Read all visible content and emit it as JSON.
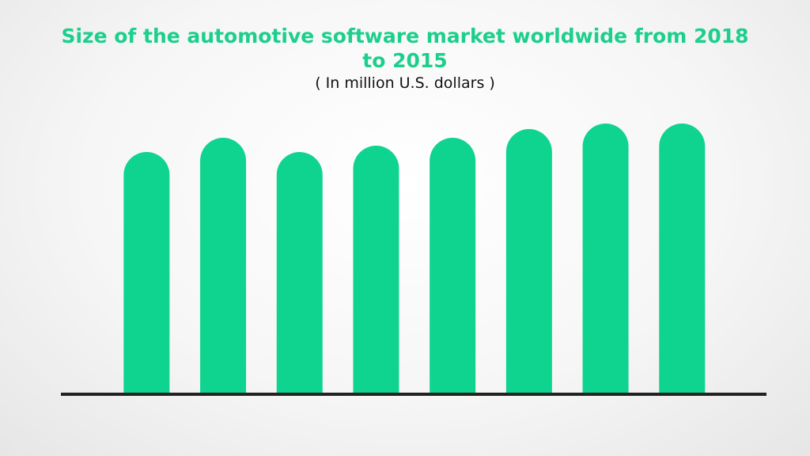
{
  "chart_data": {
    "type": "bar",
    "title": "Size of the automotive software market worldwide from 2018 to 2015",
    "subtitle": "( In million U.S. dollars )",
    "values": [
      305,
      323,
      305,
      313,
      323,
      334,
      341,
      341
    ],
    "color": "#0fd48f",
    "ylim": [
      0,
      360
    ]
  }
}
